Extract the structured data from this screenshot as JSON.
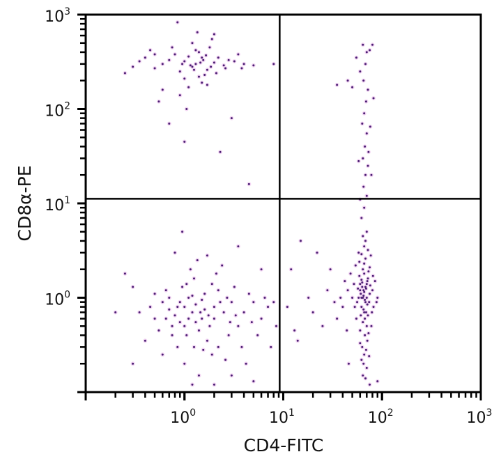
{
  "chart_data": {
    "type": "scatter",
    "title": "",
    "xlabel": "CD4-FITC",
    "ylabel": "CD8α-PE",
    "x_scale": "log",
    "y_scale": "log",
    "xlim": [
      0.1,
      1000
    ],
    "ylim": [
      0.1,
      1000
    ],
    "grid": false,
    "xtick_labels": [
      {
        "v": 1,
        "base": "10",
        "exp": "0"
      },
      {
        "v": 10,
        "base": "10",
        "exp": "1"
      },
      {
        "v": 100,
        "base": "10",
        "exp": "2"
      },
      {
        "v": 1000,
        "base": "10",
        "exp": "3"
      }
    ],
    "ytick_labels": [
      {
        "v": 1,
        "base": "10",
        "exp": "0"
      },
      {
        "v": 10,
        "base": "10",
        "exp": "1"
      },
      {
        "v": 100,
        "base": "10",
        "exp": "2"
      },
      {
        "v": 1000,
        "base": "10",
        "exp": "3"
      }
    ],
    "quadrant_gates": {
      "x": 9.2,
      "y": 11.2
    },
    "point_color": "#4a1f73",
    "points": [
      [
        1.3,
        300
      ],
      [
        1.5,
        350
      ],
      [
        1.2,
        280
      ],
      [
        1.0,
        320
      ],
      [
        1.7,
        260
      ],
      [
        1.4,
        400
      ],
      [
        0.9,
        250
      ],
      [
        2.0,
        310
      ],
      [
        1.1,
        360
      ],
      [
        1.6,
        230
      ],
      [
        0.7,
        330
      ],
      [
        2.5,
        290
      ],
      [
        1.3,
        420
      ],
      [
        0.5,
        270
      ],
      [
        3.2,
        320
      ],
      [
        0.8,
        380
      ],
      [
        1.8,
        450
      ],
      [
        1.0,
        210
      ],
      [
        2.2,
        350
      ],
      [
        1.5,
        190
      ],
      [
        0.6,
        300
      ],
      [
        4.0,
        300
      ],
      [
        0.4,
        350
      ],
      [
        1.2,
        500
      ],
      [
        0.3,
        280
      ],
      [
        1.9,
        550
      ],
      [
        5.0,
        290
      ],
      [
        0.25,
        240
      ],
      [
        1.1,
        170
      ],
      [
        0.9,
        140
      ],
      [
        0.6,
        160
      ],
      [
        1.7,
        180
      ],
      [
        2.6,
        270
      ],
      [
        3.5,
        380
      ],
      [
        0.45,
        420
      ],
      [
        0.75,
        450
      ],
      [
        1.35,
        650
      ],
      [
        2.0,
        620
      ],
      [
        0.55,
        120
      ],
      [
        1.05,
        100
      ],
      [
        1.0,
        45
      ],
      [
        2.3,
        35
      ],
      [
        0.7,
        70
      ],
      [
        3.0,
        80
      ],
      [
        4.5,
        16
      ],
      [
        0.85,
        830
      ],
      [
        1.25,
        260
      ],
      [
        1.45,
        310
      ],
      [
        1.55,
        330
      ],
      [
        1.15,
        290
      ],
      [
        0.95,
        300
      ],
      [
        1.65,
        370
      ],
      [
        2.8,
        330
      ],
      [
        3.8,
        270
      ],
      [
        0.35,
        320
      ],
      [
        2.1,
        240
      ],
      [
        1.85,
        280
      ],
      [
        1.4,
        220
      ],
      [
        8.0,
        300
      ],
      [
        0.5,
        380
      ],
      [
        1.0,
        0.8
      ],
      [
        1.2,
        0.7
      ],
      [
        0.9,
        0.9
      ],
      [
        1.5,
        0.6
      ],
      [
        0.7,
        0.75
      ],
      [
        1.1,
        1.0
      ],
      [
        1.3,
        0.55
      ],
      [
        0.8,
        0.65
      ],
      [
        2.0,
        0.8
      ],
      [
        1.6,
        1.1
      ],
      [
        0.6,
        0.9
      ],
      [
        1.4,
        0.45
      ],
      [
        2.5,
        0.7
      ],
      [
        0.95,
        1.3
      ],
      [
        1.8,
        0.5
      ],
      [
        0.5,
        0.6
      ],
      [
        3.0,
        0.9
      ],
      [
        1.05,
        0.4
      ],
      [
        2.2,
        1.2
      ],
      [
        0.75,
        0.5
      ],
      [
        4.0,
        0.7
      ],
      [
        1.25,
        1.6
      ],
      [
        0.65,
        1.2
      ],
      [
        3.5,
        0.5
      ],
      [
        5.0,
        0.9
      ],
      [
        0.45,
        0.8
      ],
      [
        1.7,
        0.35
      ],
      [
        2.8,
        0.4
      ],
      [
        0.85,
        0.3
      ],
      [
        6.0,
        0.6
      ],
      [
        1.15,
        2.0
      ],
      [
        0.55,
        0.45
      ],
      [
        2.1,
        1.8
      ],
      [
        3.2,
        1.3
      ],
      [
        0.35,
        0.7
      ],
      [
        4.5,
        1.1
      ],
      [
        7.0,
        0.8
      ],
      [
        1.9,
        0.25
      ],
      [
        1.0,
        0.2
      ],
      [
        0.6,
        0.25
      ],
      [
        2.6,
        0.22
      ],
      [
        3.8,
        0.3
      ],
      [
        0.4,
        0.35
      ],
      [
        1.35,
        2.5
      ],
      [
        0.8,
        3.0
      ],
      [
        2.4,
        2.2
      ],
      [
        0.25,
        1.8
      ],
      [
        0.3,
        0.2
      ],
      [
        1.4,
        0.15
      ],
      [
        0.2,
        0.7
      ],
      [
        5.5,
        0.4
      ],
      [
        6.5,
        1.0
      ],
      [
        8.0,
        0.9
      ],
      [
        8.5,
        0.5
      ],
      [
        3.0,
        0.15
      ],
      [
        4.2,
        0.2
      ],
      [
        1.1,
        0.6
      ],
      [
        1.3,
        0.85
      ],
      [
        0.9,
        0.55
      ],
      [
        1.6,
        0.75
      ],
      [
        0.7,
        1.0
      ],
      [
        2.0,
        0.6
      ],
      [
        1.2,
        1.05
      ],
      [
        1.5,
        0.95
      ],
      [
        0.85,
        0.8
      ],
      [
        1.75,
        0.65
      ],
      [
        2.3,
        0.9
      ],
      [
        1.0,
        0.5
      ],
      [
        0.65,
        0.6
      ],
      [
        1.45,
        0.7
      ],
      [
        2.7,
        1.0
      ],
      [
        3.3,
        0.65
      ],
      [
        1.05,
        1.4
      ],
      [
        0.5,
        1.1
      ],
      [
        2.9,
        0.55
      ],
      [
        4.8,
        0.55
      ],
      [
        1.9,
        1.4
      ],
      [
        0.75,
        0.4
      ],
      [
        1.25,
        0.3
      ],
      [
        1.55,
        0.28
      ],
      [
        2.2,
        0.3
      ],
      [
        0.95,
        5.0
      ],
      [
        1.7,
        2.8
      ],
      [
        3.5,
        3.5
      ],
      [
        6.0,
        2.0
      ],
      [
        0.3,
        1.3
      ],
      [
        5.0,
        0.13
      ],
      [
        2.0,
        0.12
      ],
      [
        7.5,
        0.3
      ],
      [
        1.2,
        0.12
      ],
      [
        65,
        1.2
      ],
      [
        70,
        1.0
      ],
      [
        60,
        1.4
      ],
      [
        68,
        0.9
      ],
      [
        72,
        1.6
      ],
      [
        62,
        0.8
      ],
      [
        66,
        1.8
      ],
      [
        75,
        1.1
      ],
      [
        58,
        1.0
      ],
      [
        64,
        2.0
      ],
      [
        69,
        0.7
      ],
      [
        63,
        1.3
      ],
      [
        71,
        1.5
      ],
      [
        67,
        0.6
      ],
      [
        61,
        1.1
      ],
      [
        74,
        0.9
      ],
      [
        66,
        2.3
      ],
      [
        59,
        1.7
      ],
      [
        70,
        0.5
      ],
      [
        65,
        0.75
      ],
      [
        73,
        1.9
      ],
      [
        57,
        1.25
      ],
      [
        68,
        2.6
      ],
      [
        64,
        0.55
      ],
      [
        72,
        0.65
      ],
      [
        62,
        1.55
      ],
      [
        76,
        1.35
      ],
      [
        60,
        0.45
      ],
      [
        67,
        0.4
      ],
      [
        71,
        0.35
      ],
      [
        63,
        0.3
      ],
      [
        69,
        0.28
      ],
      [
        66,
        0.25
      ],
      [
        65,
        0.2
      ],
      [
        70,
        0.18
      ],
      [
        64,
        0.15
      ],
      [
        68,
        0.14
      ],
      [
        62,
        0.22
      ],
      [
        74,
        0.24
      ],
      [
        60,
        0.33
      ],
      [
        78,
        0.5
      ],
      [
        55,
        0.6
      ],
      [
        80,
        1.2
      ],
      [
        52,
        1.4
      ],
      [
        82,
        0.8
      ],
      [
        54,
        2.2
      ],
      [
        77,
        2.8
      ],
      [
        58,
        3.0
      ],
      [
        66,
        3.5
      ],
      [
        72,
        3.2
      ],
      [
        62,
        2.9
      ],
      [
        68,
        4.0
      ],
      [
        64,
        4.5
      ],
      [
        70,
        5.0
      ],
      [
        50,
        1.0
      ],
      [
        85,
        1.5
      ],
      [
        48,
        1.8
      ],
      [
        88,
        0.9
      ],
      [
        45,
        1.2
      ],
      [
        90,
        1.0
      ],
      [
        56,
        0.9
      ],
      [
        79,
        0.7
      ],
      [
        53,
        0.8
      ],
      [
        81,
        1.7
      ],
      [
        59,
        2.4
      ],
      [
        75,
        2.1
      ],
      [
        61,
        0.65
      ],
      [
        73,
        0.42
      ],
      [
        67,
        0.95
      ],
      [
        65,
        1.05
      ],
      [
        69,
        1.25
      ],
      [
        63,
        1.45
      ],
      [
        71,
        0.85
      ],
      [
        66,
        1.15
      ],
      [
        64,
        1.0
      ],
      [
        68,
        1.3
      ],
      [
        60,
        1.2
      ],
      [
        70,
        1.4
      ],
      [
        62,
        1.0
      ],
      [
        66,
        0.7
      ],
      [
        38,
        1.0
      ],
      [
        35,
        0.6
      ],
      [
        42,
        1.5
      ],
      [
        40,
        0.8
      ],
      [
        30,
        2.0
      ],
      [
        28,
        1.2
      ],
      [
        25,
        0.5
      ],
      [
        22,
        3.0
      ],
      [
        18,
        1.0
      ],
      [
        15,
        4.0
      ],
      [
        12,
        2.0
      ],
      [
        11,
        0.8
      ],
      [
        13,
        0.45
      ],
      [
        14,
        0.35
      ],
      [
        20,
        0.7
      ],
      [
        33,
        0.9
      ],
      [
        44,
        0.45
      ],
      [
        46,
        0.2
      ],
      [
        90,
        0.13
      ],
      [
        75,
        0.12
      ],
      [
        62,
        7
      ],
      [
        66,
        9
      ],
      [
        70,
        12
      ],
      [
        65,
        15
      ],
      [
        68,
        20
      ],
      [
        72,
        25
      ],
      [
        64,
        30
      ],
      [
        67,
        40
      ],
      [
        70,
        55
      ],
      [
        63,
        70
      ],
      [
        66,
        90
      ],
      [
        69,
        120
      ],
      [
        72,
        160
      ],
      [
        65,
        200
      ],
      [
        60,
        250
      ],
      [
        68,
        300
      ],
      [
        70,
        400
      ],
      [
        64,
        480
      ],
      [
        75,
        420
      ],
      [
        55,
        350
      ],
      [
        50,
        170
      ],
      [
        45,
        200
      ],
      [
        35,
        180
      ],
      [
        80,
        480
      ],
      [
        73,
        35
      ],
      [
        78,
        20
      ],
      [
        60,
        11
      ],
      [
        82,
        130
      ],
      [
        76,
        65
      ],
      [
        58,
        28
      ]
    ]
  }
}
